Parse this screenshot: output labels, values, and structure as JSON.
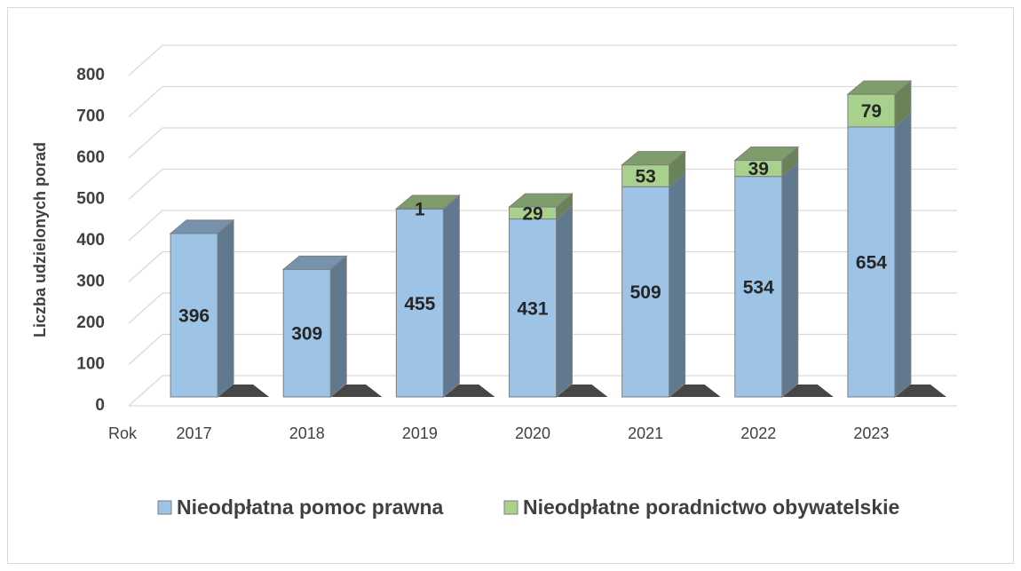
{
  "chart_data": {
    "type": "bar3d_stacked",
    "ylabel": "Liczba udzielonych porad",
    "xlabel": "Rok",
    "categories": [
      "2017",
      "2018",
      "2019",
      "2020",
      "2021",
      "2022",
      "2023"
    ],
    "series": [
      {
        "name": "Nieodpłatna pomoc prawna",
        "color": "#9dc3e6",
        "values": [
          396,
          309,
          455,
          431,
          509,
          534,
          654
        ]
      },
      {
        "name": "Nieodpłatne poradnictwo obywatelskie",
        "color": "#a9d18e",
        "values": [
          null,
          null,
          1,
          29,
          53,
          39,
          79
        ]
      }
    ],
    "ylim": [
      0,
      800
    ],
    "yticks": [
      0,
      100,
      200,
      300,
      400,
      500,
      600,
      700,
      800
    ],
    "grid": true,
    "legend": "bottom"
  }
}
